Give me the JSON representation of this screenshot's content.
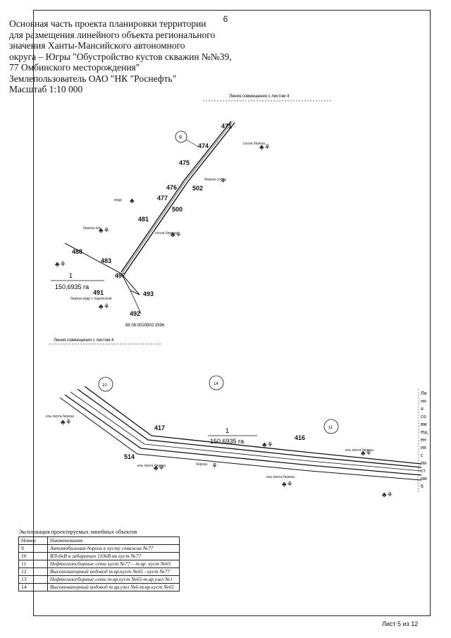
{
  "page_number": "6",
  "title_lines": [
    "Основная часть проекта планировки территории",
    "для размещения линейного объекта регионального",
    "значения Ханты-Мансийского автономного",
    "округа – Югры \"Обустройство кустов скважин №№39,",
    "77 Омбинского  месторождения\"",
    "Землепользователь ОАО \"НК \"Роснефть\"",
    "Масштаб 1:10 000"
  ],
  "map": {
    "match_line_label": "Линия совмещения с листом 4",
    "area_number": "1",
    "area_value": "150,6935 га",
    "area_value_lower": "150,6935 га",
    "cadastral_number": "86 08:0020902:1596",
    "upper_points": [
      "471",
      "474",
      "475",
      "476",
      "502",
      "477",
      "500",
      "481",
      "488",
      "483",
      "497",
      "491",
      "493",
      "492"
    ],
    "lower_points": [
      "417",
      "416",
      "514"
    ],
    "circle_labels": [
      "9",
      "10",
      "14",
      "11"
    ],
    "tree_notes": [
      "сосна береза",
      "береза сосна",
      "береза ель",
      "кедр",
      "ель пихта береза",
      "ель пихта береза",
      "ель пихта береза",
      "береза кедр с подлеском",
      "ель пихта береза",
      "береза",
      "сосна береза"
    ],
    "side_text": [
      "Ли",
      "ни",
      "я",
      "со",
      "вм",
      "ещ",
      "ен",
      "ия",
      "с",
      "ли",
      "ст",
      "ом",
      "6"
    ]
  },
  "legend": {
    "caption": "Экспликация проектируемых линейных объектов",
    "headers": [
      "Номер",
      "Наименование"
    ],
    "rows": [
      [
        "9",
        "Автомобильная дорога к кусту скважин №77"
      ],
      [
        "10",
        "ВЛ-6кВ в габаритах 110кВ на куст №77"
      ],
      [
        "11",
        "Нефтегазосборные сети куст №77 – т.вр. куст №65"
      ],
      [
        "12",
        "Высоконапорный водовод т.вр.куст №65 - куст №77"
      ],
      [
        "13",
        "Нефтегазосборные сети т.вр.куст №65-т.вр.узел №1"
      ],
      [
        "14",
        "Высоконапорный водовод т.вр.узел №6-т.вр.куст №65"
      ]
    ]
  },
  "footer": "Лист 5 из 12"
}
